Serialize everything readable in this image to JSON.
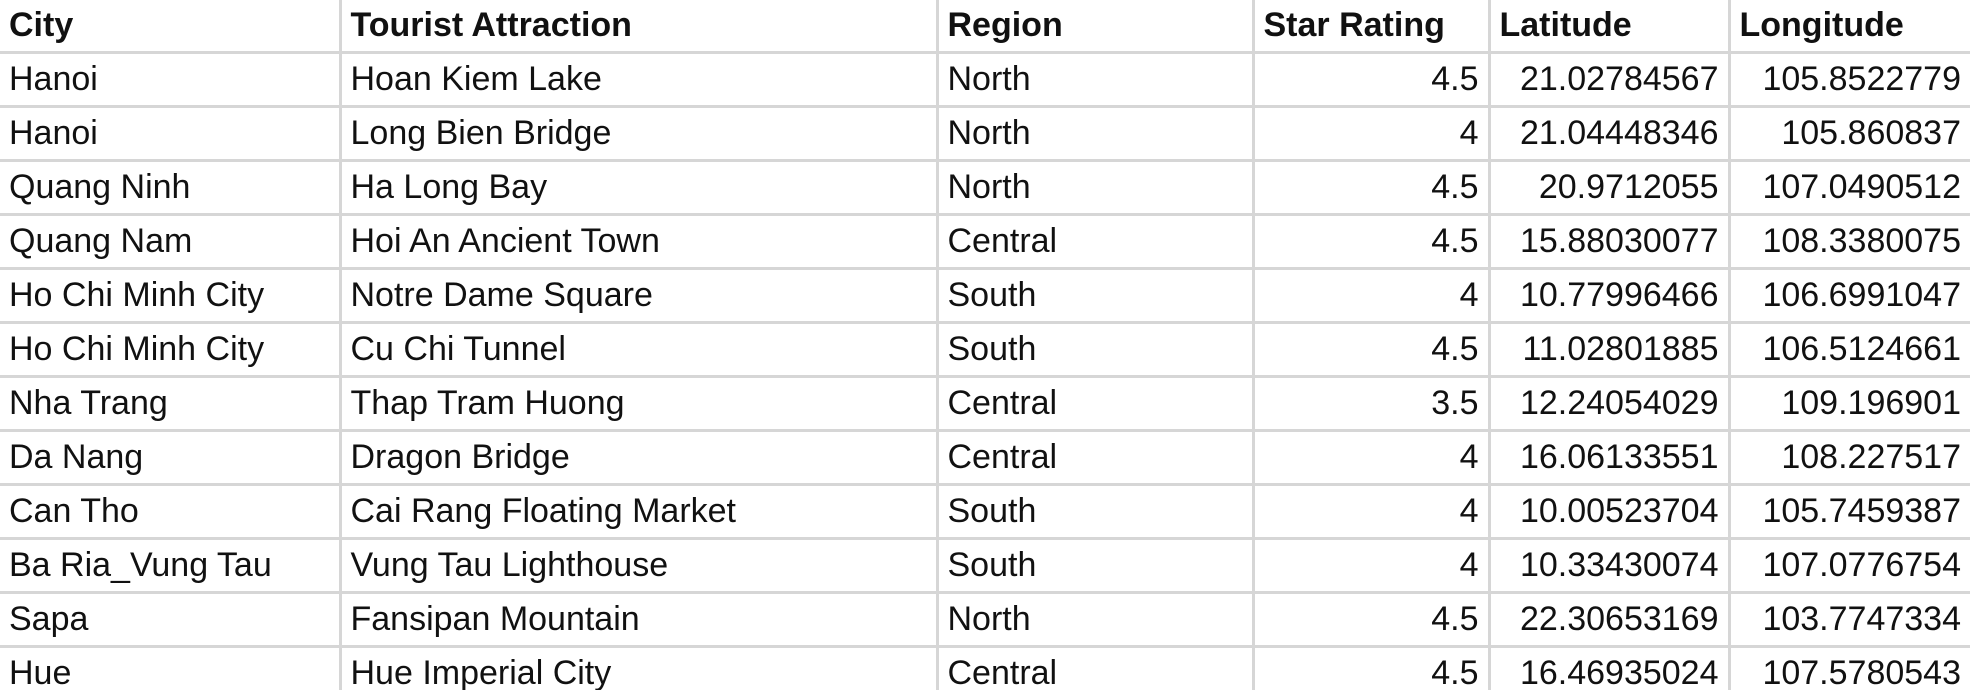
{
  "table": {
    "headers": [
      "City",
      "Tourist Attraction",
      "Region",
      "Star Rating",
      "Latitude",
      "Longitude"
    ],
    "rows": [
      [
        "Hanoi",
        "Hoan Kiem Lake",
        "North",
        "4.5",
        "21.02784567",
        "105.8522779"
      ],
      [
        "Hanoi",
        "Long Bien Bridge",
        "North",
        "4",
        "21.04448346",
        "105.860837"
      ],
      [
        "Quang Ninh",
        "Ha Long Bay",
        "North",
        "4.5",
        "20.9712055",
        "107.0490512"
      ],
      [
        "Quang Nam",
        "Hoi An Ancient Town",
        "Central",
        "4.5",
        "15.88030077",
        "108.3380075"
      ],
      [
        "Ho Chi Minh City",
        "Notre Dame Square",
        "South",
        "4",
        "10.77996466",
        "106.6991047"
      ],
      [
        "Ho Chi Minh City",
        "Cu Chi Tunnel",
        "South",
        "4.5",
        "11.02801885",
        "106.5124661"
      ],
      [
        "Nha Trang",
        "Thap Tram Huong",
        "Central",
        "3.5",
        "12.24054029",
        "109.196901"
      ],
      [
        "Da Nang",
        "Dragon Bridge",
        "Central",
        "4",
        "16.06133551",
        "108.227517"
      ],
      [
        "Can Tho",
        "Cai Rang Floating Market",
        "South",
        "4",
        "10.00523704",
        "105.7459387"
      ],
      [
        "Ba Ria_Vung Tau",
        "Vung Tau Lighthouse",
        "South",
        "4",
        "10.33430074",
        "107.0776754"
      ],
      [
        "Sapa",
        "Fansipan Mountain",
        "North",
        "4.5",
        "22.30653169",
        "103.7747334"
      ],
      [
        "Hue",
        "Hue Imperial City",
        "Central",
        "4.5",
        "16.46935024",
        "107.5780543"
      ]
    ]
  }
}
